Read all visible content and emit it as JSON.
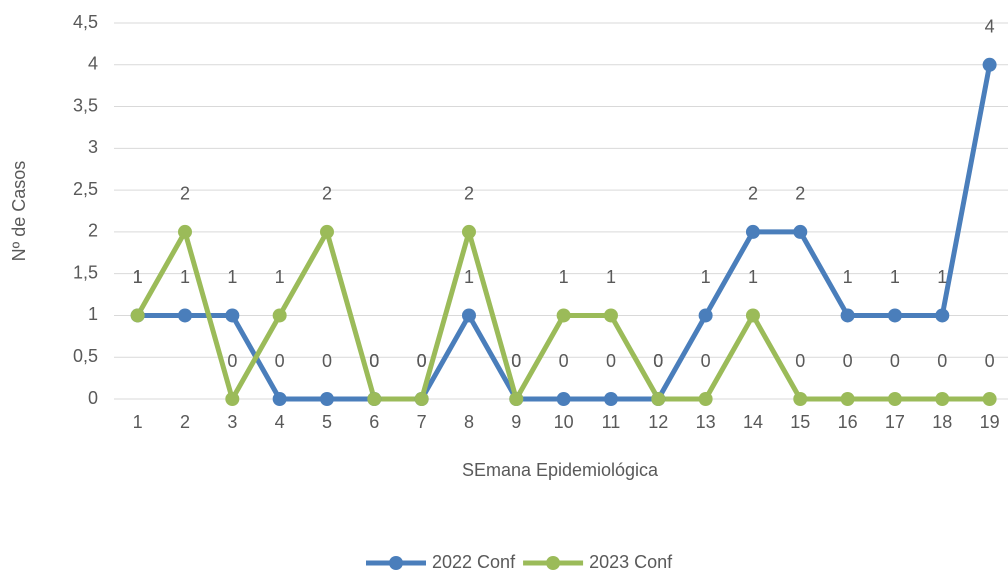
{
  "chart_data": {
    "type": "line",
    "categories": [
      "1",
      "2",
      "3",
      "4",
      "5",
      "6",
      "7",
      "8",
      "9",
      "10",
      "11",
      "12",
      "13",
      "14",
      "15",
      "16",
      "17",
      "18",
      "19"
    ],
    "series": [
      {
        "name": "2022 Conf",
        "color": "#4a7ebb",
        "values": [
          1,
          1,
          1,
          0,
          0,
          0,
          0,
          1,
          0,
          0,
          0,
          0,
          1,
          2,
          2,
          1,
          1,
          1,
          4
        ]
      },
      {
        "name": "2023 Conf",
        "color": "#9bbb59",
        "values": [
          1,
          2,
          0,
          1,
          2,
          0,
          0,
          2,
          0,
          1,
          1,
          0,
          0,
          1,
          0,
          0,
          0,
          0,
          0
        ]
      }
    ],
    "ylim": [
      0,
      4.5
    ],
    "yticks": [
      0,
      {
        "value": 0.5,
        "label": "0,5"
      },
      1,
      {
        "value": 1.5,
        "label": "1,5"
      },
      2,
      {
        "value": 2.5,
        "label": "2,5"
      },
      3,
      {
        "value": 3.5,
        "label": "3,5"
      },
      4,
      {
        "value": 4.5,
        "label": "4,5"
      }
    ],
    "xlabel": "SEmana Epidemiológica",
    "ylabel": "Nº de Casos",
    "grid": true
  }
}
